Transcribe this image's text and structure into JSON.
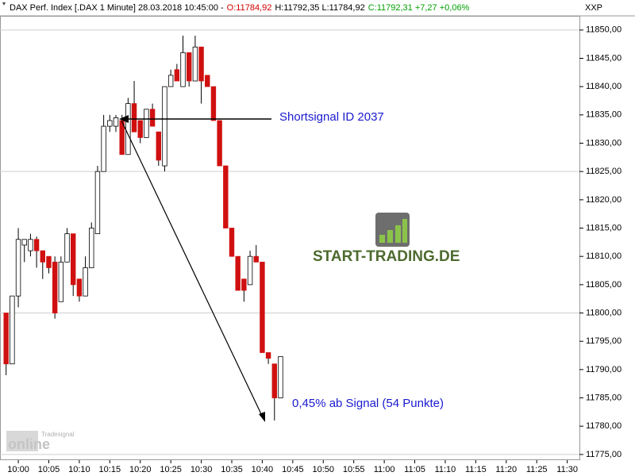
{
  "chart_data": {
    "type": "candlestick",
    "header": [
      {
        "text": "DAX Perf. Index [.DAX  1 Minute] 28.03.2018 10:45:00 -",
        "color": "#000000"
      },
      {
        "text": "O:11784,92",
        "color": "#d00000"
      },
      {
        "text": "H:11792,35 L:11784,92",
        "color": "#000000"
      },
      {
        "text": "C:11792,31 +7,27 +0,06%",
        "color": "#00a000"
      }
    ],
    "axis_title": "XXP",
    "annotations": [
      "Shortsignal ID 2037",
      "0,45% ab Signal (54 Punkte)"
    ],
    "logo": {
      "brand": "START-TRADING.DE",
      "provider": "Tradesignal",
      "product": "online"
    },
    "up_color": "#ffffff",
    "down_color": "#d01010",
    "x": [
      "09:58",
      "09:59",
      "10:00",
      "10:01",
      "10:02",
      "10:03",
      "10:04",
      "10:05",
      "10:06",
      "10:07",
      "10:08",
      "10:09",
      "10:10",
      "10:11",
      "10:12",
      "10:13",
      "10:14",
      "10:15",
      "10:16",
      "10:17",
      "10:18",
      "10:19",
      "10:20",
      "10:21",
      "10:22",
      "10:23",
      "10:24",
      "10:25",
      "10:26",
      "10:27",
      "10:28",
      "10:29",
      "10:30",
      "10:31",
      "10:32",
      "10:33",
      "10:34",
      "10:35",
      "10:36",
      "10:37",
      "10:38",
      "10:39",
      "10:40",
      "10:41",
      "10:42",
      "10:43"
    ],
    "open": [
      11800,
      11791,
      11803,
      11812,
      11811,
      11813,
      11811,
      11810,
      11809,
      11802,
      11809,
      11814,
      11806,
      11803,
      11808,
      11814,
      11825,
      11833,
      11833,
      11834,
      11828,
      11837,
      11834,
      11831,
      11836,
      11832,
      11826,
      11840,
      11843,
      11840,
      11846,
      11841,
      11847,
      11842,
      11840,
      11834,
      11826,
      11815,
      11810,
      11806,
      11805,
      11810,
      11809,
      11793,
      11791,
      11785
    ],
    "high": [
      11800,
      11803,
      11815,
      11813,
      11814,
      11813.5,
      11811,
      11810,
      11810,
      11810,
      11815,
      11814,
      11806,
      11810,
      11816,
      11826,
      11835,
      11835,
      11835,
      11835,
      11838,
      11841,
      11834,
      11836,
      11837,
      11832,
      11840,
      11843,
      11844,
      11849,
      11846,
      11849,
      11847,
      11842,
      11840,
      11834,
      11826,
      11815,
      11810,
      11806,
      11811,
      11812,
      11809,
      11793,
      11791,
      11792.3
    ],
    "low": [
      11789,
      11791,
      11801,
      11809,
      11810,
      11808,
      11806,
      11807,
      11799,
      11802,
      11809,
      11803,
      11802,
      11803,
      11808,
      11814,
      11825,
      11832,
      11832,
      11828,
      11828,
      11832,
      11830,
      11831,
      11833,
      11826,
      11825,
      11840,
      11841,
      11840,
      11840,
      11841,
      11837,
      11840,
      11834,
      11826,
      11815,
      11810,
      11804,
      11802,
      11805,
      11809,
      11793,
      11791,
      11781,
      11785
    ],
    "close": [
      11791,
      11803,
      11813,
      11813,
      11813,
      11811,
      11809,
      11808,
      11800,
      11809,
      11814,
      11805,
      11803,
      11808,
      11815,
      11825,
      11833,
      11834,
      11834.5,
      11828,
      11837,
      11832,
      11831,
      11836,
      11833,
      11827,
      11840,
      11842,
      11841,
      11846,
      11841,
      11847,
      11841,
      11840,
      11834,
      11826,
      11815,
      11810,
      11804,
      11804,
      11810,
      11809,
      11793,
      11792,
      11785,
      11792.3
    ],
    "xlim": [
      "09:57",
      "11:32"
    ],
    "xticks": [
      "10:00",
      "10:05",
      "10:10",
      "10:15",
      "10:20",
      "10:25",
      "10:30",
      "10:35",
      "10:40",
      "10:45",
      "10:50",
      "10:55",
      "11:00",
      "11:05",
      "11:10",
      "11:15",
      "11:20",
      "11:25",
      "11:30"
    ],
    "ylim": [
      11774,
      11852.5
    ],
    "yticks": [
      {
        "value": 11775,
        "label": "11775,00"
      },
      {
        "value": 11780,
        "label": "11780,00"
      },
      {
        "value": 11785,
        "label": "11785,00"
      },
      {
        "value": 11790,
        "label": "11790,00"
      },
      {
        "value": 11795,
        "label": "11795,00"
      },
      {
        "value": 11800,
        "label": "11800,00"
      },
      {
        "value": 11805,
        "label": "11805,00"
      },
      {
        "value": 11810,
        "label": "11810,00"
      },
      {
        "value": 11815,
        "label": "11815,00"
      },
      {
        "value": 11820,
        "label": "11820,00"
      },
      {
        "value": 11825,
        "label": "11825,00"
      },
      {
        "value": 11830,
        "label": "11830,00"
      },
      {
        "value": 11835,
        "label": "11835,00"
      },
      {
        "value": 11840,
        "label": "11840,00"
      },
      {
        "value": 11845,
        "label": "11845,00"
      },
      {
        "value": 11850,
        "label": "11850,00"
      }
    ],
    "ygrid": [
      11775,
      11800,
      11825,
      11850
    ]
  }
}
